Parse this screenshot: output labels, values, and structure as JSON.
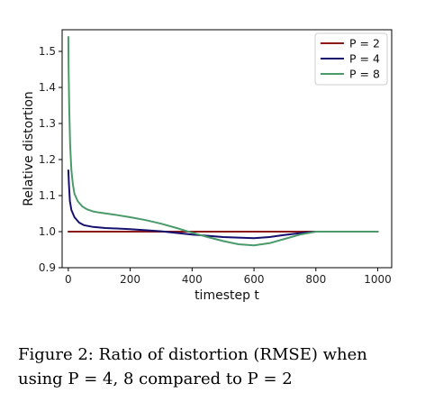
{
  "chart_data": {
    "type": "line",
    "xlabel": "timestep t",
    "ylabel": "Relative distortion",
    "xlim": [
      -20,
      1045
    ],
    "ylim": [
      0.9,
      1.56
    ],
    "xticks": [
      0,
      200,
      400,
      600,
      800,
      1000
    ],
    "yticks": [
      0.9,
      1.0,
      1.1,
      1.2,
      1.3,
      1.4,
      1.5
    ],
    "ytick_labels": [
      "0.9",
      "1.0",
      "1.1",
      "1.2",
      "1.3",
      "1.4",
      "1.5"
    ],
    "grid": false,
    "legend_position": "top-right",
    "series": [
      {
        "name": "P = 2",
        "color": "#8b1a1a",
        "x": [
          0,
          200,
          400,
          600,
          800,
          1000
        ],
        "y": [
          1.0,
          1.0,
          1.0,
          1.0,
          1.0,
          1.0
        ]
      },
      {
        "name": "P = 4",
        "color": "#15106e",
        "x": [
          0,
          2,
          5,
          10,
          20,
          35,
          50,
          80,
          120,
          200,
          300,
          400,
          500,
          600,
          650,
          700,
          750,
          800,
          900,
          1000
        ],
        "y": [
          1.17,
          1.13,
          1.085,
          1.06,
          1.04,
          1.025,
          1.018,
          1.013,
          1.01,
          1.007,
          1.001,
          0.992,
          0.985,
          0.982,
          0.985,
          0.991,
          0.996,
          1.0,
          1.0,
          1.0
        ]
      },
      {
        "name": "P = 8",
        "color": "#4a9a6a",
        "x": [
          0,
          1,
          3,
          6,
          10,
          15,
          20,
          30,
          45,
          60,
          80,
          100,
          150,
          200,
          250,
          300,
          350,
          400,
          450,
          500,
          550,
          600,
          650,
          700,
          750,
          800,
          850,
          900,
          1000
        ],
        "y": [
          1.54,
          1.45,
          1.34,
          1.24,
          1.17,
          1.13,
          1.105,
          1.085,
          1.07,
          1.062,
          1.056,
          1.053,
          1.047,
          1.04,
          1.032,
          1.022,
          1.01,
          0.997,
          0.985,
          0.974,
          0.965,
          0.962,
          0.968,
          0.98,
          0.992,
          1.0,
          1.0,
          1.0,
          1.0
        ]
      }
    ]
  },
  "caption": {
    "text": "Figure 2:  Ratio of distortion (RMSE) when using P = 4, 8 compared to P = 2"
  }
}
